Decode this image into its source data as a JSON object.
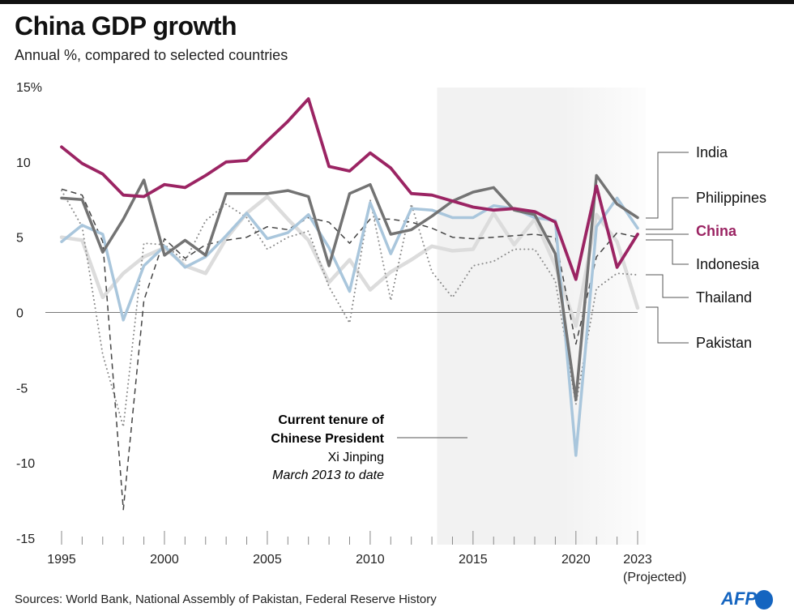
{
  "title": "China GDP growth",
  "subtitle": "Annual %, compared to selected countries",
  "source": "Sources: World Bank, National Assembly of Pakistan, Federal Reserve History",
  "logo": "AFP",
  "chart_data": {
    "type": "line",
    "title": "China GDP growth",
    "subtitle": "Annual %, compared to selected countries",
    "xlabel": "",
    "ylabel": "",
    "xlim": [
      1995,
      2023
    ],
    "ylim": [
      -15,
      15
    ],
    "y_ticks": [
      {
        "value": 15,
        "label": "15%"
      },
      {
        "value": 10,
        "label": "10"
      },
      {
        "value": 5,
        "label": "5"
      },
      {
        "value": 0,
        "label": "0"
      },
      {
        "value": -5,
        "label": "-5"
      },
      {
        "value": -10,
        "label": "-10"
      },
      {
        "value": -15,
        "label": "-15"
      }
    ],
    "x_ticks": [
      {
        "value": 1995,
        "label": "1995"
      },
      {
        "value": 2000,
        "label": "2000"
      },
      {
        "value": 2005,
        "label": "2005"
      },
      {
        "value": 2010,
        "label": "2010"
      },
      {
        "value": 2015,
        "label": "2015"
      },
      {
        "value": 2020,
        "label": "2020"
      },
      {
        "value": 2023,
        "label": "2023"
      }
    ],
    "x_note": "(Projected)",
    "grid": false,
    "legend": "right, direct labels",
    "x": [
      1995,
      1996,
      1997,
      1998,
      1999,
      2000,
      2001,
      2002,
      2003,
      2004,
      2005,
      2006,
      2007,
      2008,
      2009,
      2010,
      2011,
      2012,
      2013,
      2014,
      2015,
      2016,
      2017,
      2018,
      2019,
      2020,
      2021,
      2022,
      2023
    ],
    "series": [
      {
        "name": "Pakistan",
        "color": "#dcdcdc",
        "style": "thick",
        "values": [
          5.0,
          4.8,
          1.0,
          2.6,
          3.7,
          4.3,
          3.1,
          2.6,
          4.9,
          6.6,
          7.7,
          6.2,
          4.8,
          2.0,
          3.5,
          1.5,
          2.7,
          3.5,
          4.4,
          4.1,
          4.2,
          6.6,
          4.5,
          6.2,
          3.1,
          -0.9,
          6.5,
          4.7,
          0.3
        ]
      },
      {
        "name": "Thailand",
        "color": "#8a8a8a",
        "style": "dotted",
        "values": [
          8.1,
          5.7,
          -2.8,
          -7.6,
          4.6,
          4.5,
          3.4,
          6.1,
          7.2,
          6.3,
          4.2,
          5.0,
          5.4,
          1.7,
          -0.7,
          7.5,
          0.8,
          7.2,
          2.7,
          1.0,
          3.1,
          3.4,
          4.2,
          4.2,
          2.1,
          -6.1,
          1.6,
          2.6,
          2.5
        ]
      },
      {
        "name": "Indonesia",
        "color": "#444444",
        "style": "dashed",
        "values": [
          8.2,
          7.8,
          4.7,
          -13.1,
          0.8,
          4.9,
          3.6,
          4.5,
          4.8,
          5.0,
          5.7,
          5.5,
          6.3,
          6.0,
          4.6,
          6.2,
          6.2,
          6.0,
          5.6,
          5.0,
          4.9,
          5.0,
          5.1,
          5.2,
          5.0,
          -2.1,
          3.7,
          5.3,
          5.0
        ]
      },
      {
        "name": "Philippines",
        "color": "#a9c6dc",
        "style": "solid",
        "values": [
          4.7,
          5.8,
          5.2,
          -0.5,
          3.1,
          4.4,
          3.0,
          3.7,
          5.1,
          6.6,
          4.9,
          5.3,
          6.5,
          4.3,
          1.4,
          7.3,
          3.9,
          6.9,
          6.8,
          6.3,
          6.3,
          7.1,
          6.9,
          6.3,
          6.1,
          -9.5,
          5.7,
          7.6,
          5.6
        ]
      },
      {
        "name": "India",
        "color": "#737373",
        "style": "solid",
        "values": [
          7.6,
          7.5,
          4.0,
          6.2,
          8.8,
          3.8,
          4.8,
          3.8,
          7.9,
          7.9,
          7.9,
          8.1,
          7.7,
          3.1,
          7.9,
          8.5,
          5.2,
          5.5,
          6.4,
          7.4,
          8.0,
          8.3,
          6.8,
          6.5,
          3.9,
          -5.8,
          9.1,
          7.2,
          6.3
        ]
      },
      {
        "name": "China",
        "color": "#9b2463",
        "style": "solid",
        "values": [
          11.0,
          9.9,
          9.2,
          7.8,
          7.7,
          8.5,
          8.3,
          9.1,
          10.0,
          10.1,
          11.4,
          12.7,
          14.2,
          9.7,
          9.4,
          10.6,
          9.6,
          7.9,
          7.8,
          7.4,
          7.0,
          6.8,
          6.9,
          6.7,
          6.0,
          2.2,
          8.4,
          3.0,
          5.2
        ]
      }
    ],
    "shaded_period": {
      "from": 2013.25,
      "to": 2023
    },
    "annotation": {
      "line1": "Current tenure of",
      "line2": "Chinese President",
      "line3": "Xi Jinping",
      "line4": "March 2013 to date"
    }
  }
}
